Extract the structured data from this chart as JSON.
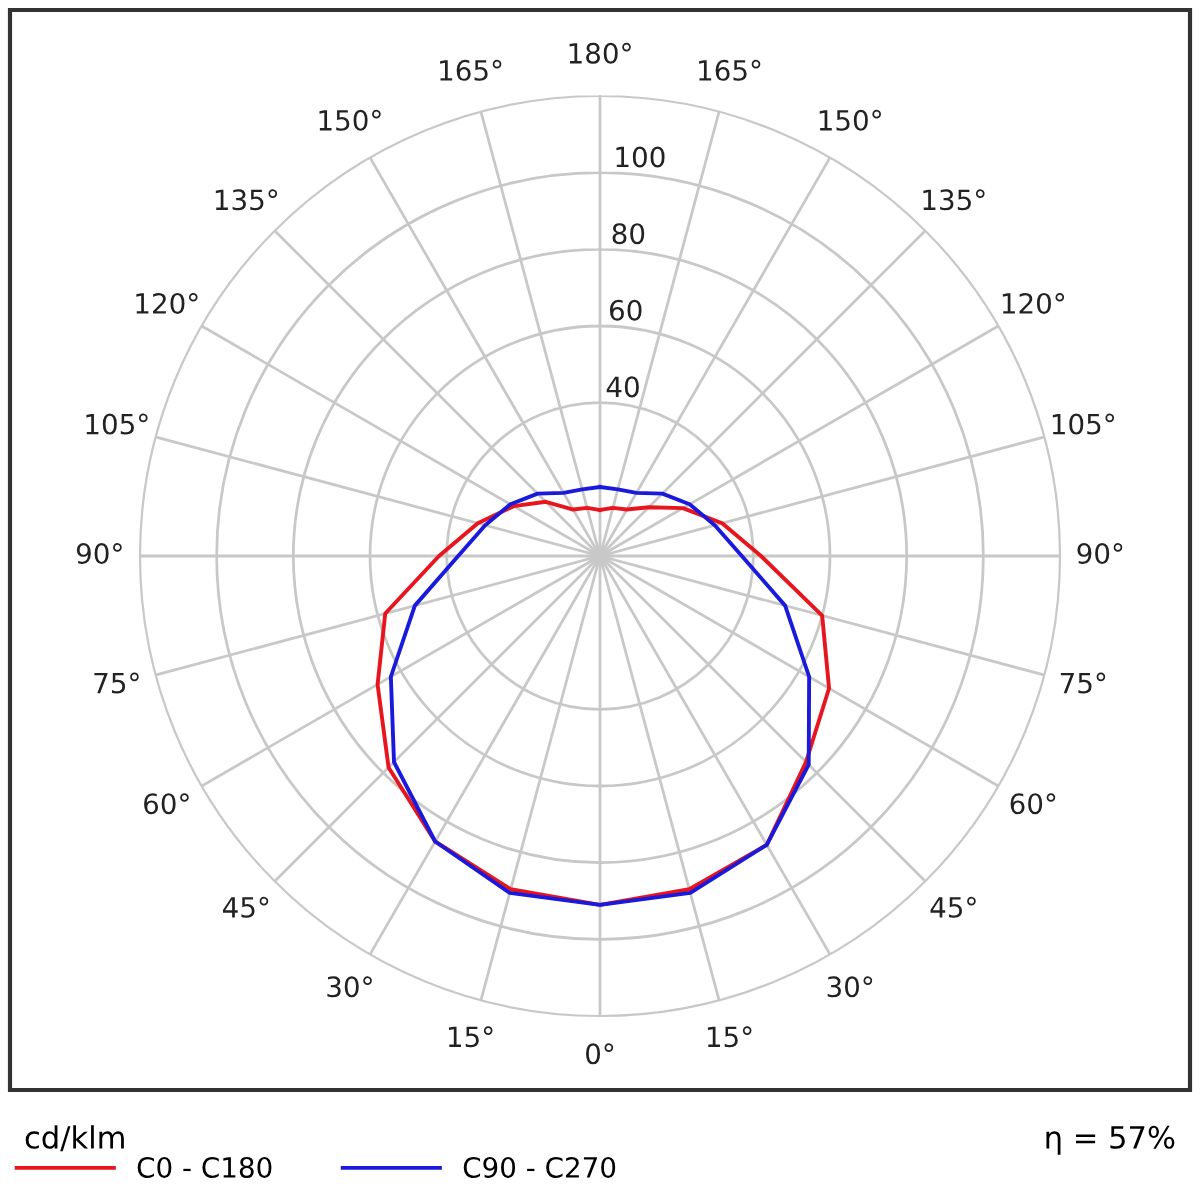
{
  "chart_data": {
    "type": "radar",
    "categories": [
      "180°",
      "165°",
      "150°",
      "135°",
      "120°",
      "105°",
      "90°",
      "75°",
      "60°",
      "45°",
      "30°",
      "15°",
      "0°",
      "15°",
      "30°",
      "45°",
      "60°",
      "75°",
      "90°",
      "105°",
      "120°",
      "135°",
      "150°",
      "165°"
    ],
    "series": [
      {
        "name": "C0 - C180",
        "color": "#e8141e",
        "values": [
          12,
          13,
          14,
          18,
          25,
          33,
          42,
          60,
          69,
          76,
          87,
          90,
          91,
          90,
          86,
          78,
          67,
          58,
          42,
          33,
          26,
          20,
          14,
          13
        ]
      },
      {
        "name": "C90 - C270",
        "color": "#1a1adc",
        "values": [
          18,
          18,
          19,
          23,
          27,
          31,
          37,
          50,
          63,
          77,
          87,
          91,
          91,
          91,
          86,
          76,
          63,
          50,
          37,
          31,
          27,
          23,
          19,
          18
        ]
      }
    ],
    "ylim": [
      0,
      120
    ],
    "yticks": [
      40,
      60,
      80,
      100
    ],
    "ylabel": "cd/klm",
    "annotations": [
      "η = 57%"
    ],
    "grid": true,
    "legend": "bottom"
  }
}
